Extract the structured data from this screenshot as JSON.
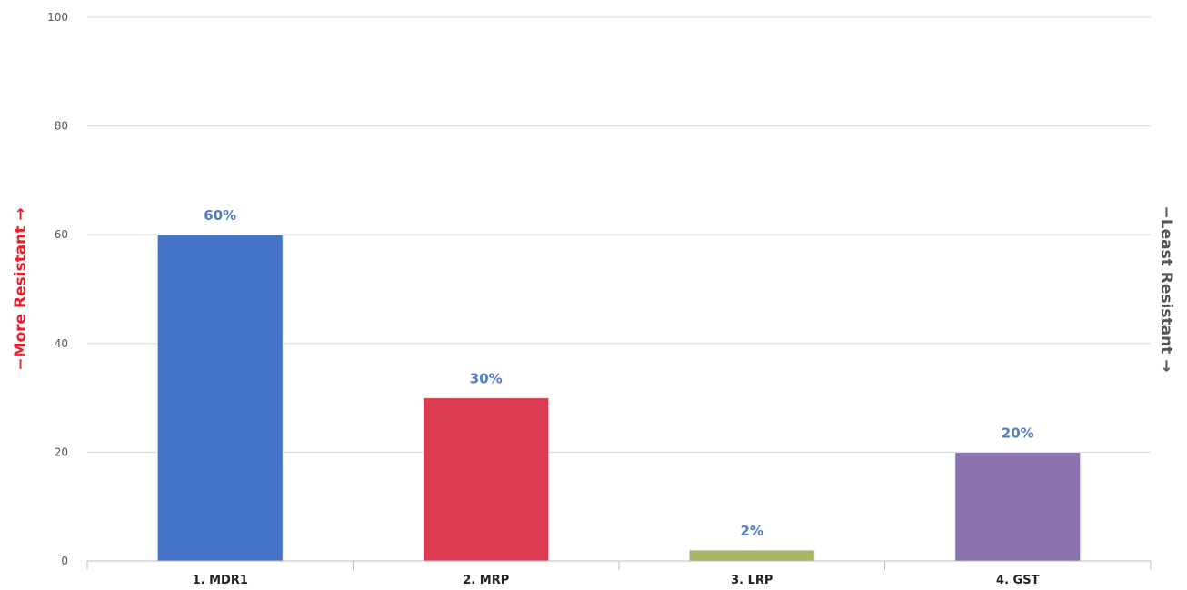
{
  "chart_data": {
    "type": "bar",
    "categories": [
      "1. MDR1",
      "2. MRP",
      "3. LRP",
      "4. GST"
    ],
    "values": [
      60,
      30,
      2,
      20
    ],
    "data_labels": [
      "60%",
      "30%",
      "2%",
      "20%"
    ],
    "bar_colors": [
      "#4472C4",
      "#DC3A4E",
      "#A9B564",
      "#8B72B0"
    ],
    "ylim": [
      0,
      100
    ],
    "yticks": [
      "0",
      "20",
      "40",
      "60",
      "80",
      "100"
    ],
    "ylabel_left": "−More Resistant →",
    "ylabel_right": "−Least Resistant →",
    "grid": true,
    "legend": "none"
  },
  "colors": {
    "data_label": "#4F7CC7",
    "left_label": "#E8202E",
    "right_label": "#555555",
    "grid": "#d8d8d8"
  }
}
